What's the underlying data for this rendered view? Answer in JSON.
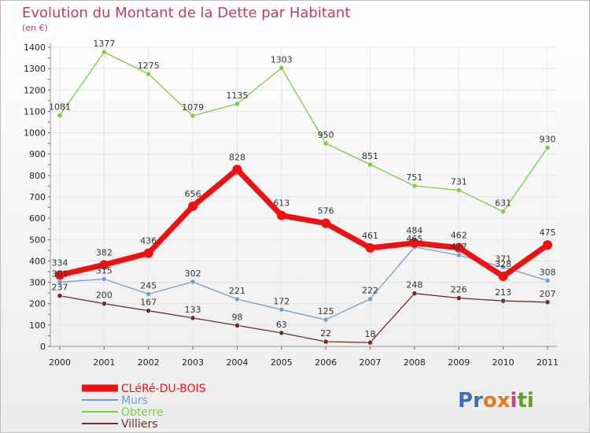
{
  "chart_data": {
    "type": "line",
    "title": "Evolution du Montant de la Dette par Habitant",
    "subtitle": "(en €)",
    "xlabel": "",
    "ylabel": "",
    "ylim": [
      0,
      1400
    ],
    "yticks": [
      0,
      100,
      200,
      300,
      400,
      500,
      600,
      700,
      800,
      900,
      1000,
      1100,
      1200,
      1300,
      1400
    ],
    "categories": [
      "2000",
      "2001",
      "2002",
      "2003",
      "2004",
      "2005",
      "2006",
      "2007",
      "2008",
      "2009",
      "2010",
      "2011"
    ],
    "grid": true,
    "legend_position": "bottom-left",
    "series": [
      {
        "name": "Obterre",
        "color": "#7ccc3c",
        "values": [
          1081,
          1377,
          1275,
          1079,
          1135,
          1303,
          950,
          851,
          751,
          731,
          631,
          930
        ]
      },
      {
        "name": "Murs",
        "color": "#6f9fd0",
        "values": [
          301,
          315,
          245,
          302,
          221,
          172,
          125,
          222,
          465,
          427,
          371,
          308
        ]
      },
      {
        "name": "Villiers",
        "color": "#6b2d2d",
        "values": [
          237,
          200,
          167,
          133,
          98,
          63,
          22,
          18,
          248,
          226,
          213,
          207
        ]
      },
      {
        "name": "CLéRé-DU-BOIS",
        "color": "#ee1111",
        "values": [
          334,
          382,
          436,
          656,
          828,
          613,
          576,
          461,
          484,
          462,
          328,
          475
        ]
      }
    ],
    "legend_order": [
      "CLéRé-DU-BOIS",
      "Murs",
      "Obterre",
      "Villiers"
    ]
  },
  "logo": {
    "text": "Proxiti"
  }
}
